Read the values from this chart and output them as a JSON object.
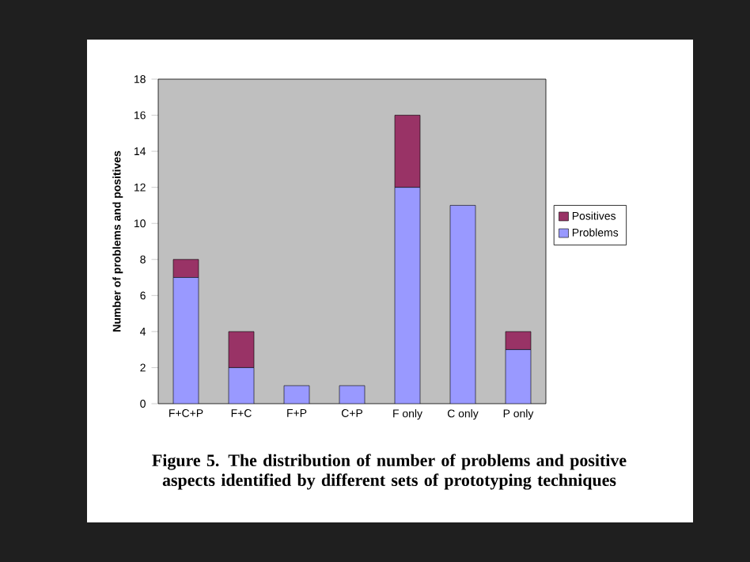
{
  "chart_data": {
    "type": "bar",
    "stacked": true,
    "ylabel": "Number of problems and positives",
    "categories": [
      "F+C+P",
      "F+C",
      "F+P",
      "C+P",
      "F only",
      "C only",
      "P only"
    ],
    "series": [
      {
        "name": "Problems",
        "color": "#9999ff",
        "values": [
          7,
          2,
          1,
          1,
          12,
          11,
          3
        ]
      },
      {
        "name": "Positives",
        "color": "#993366",
        "values": [
          1,
          2,
          0,
          0,
          4,
          0,
          1
        ]
      }
    ],
    "ylim": [
      0,
      18
    ],
    "yticks": [
      0,
      2,
      4,
      6,
      8,
      10,
      12,
      14,
      16,
      18
    ],
    "legend": "right",
    "annotations": [
      "Figure 5. The distribution of number of problems and positive aspects identified by different sets of prototyping techniques"
    ]
  }
}
